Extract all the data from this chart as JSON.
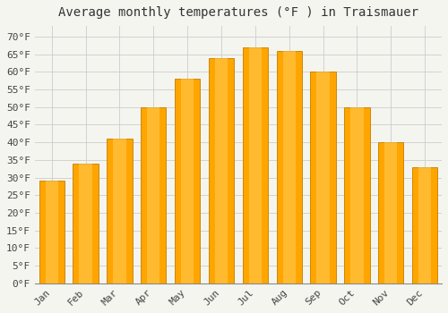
{
  "title": "Average monthly temperatures (°F ) in Traismauer",
  "months": [
    "Jan",
    "Feb",
    "Mar",
    "Apr",
    "May",
    "Jun",
    "Jul",
    "Aug",
    "Sep",
    "Oct",
    "Nov",
    "Dec"
  ],
  "values": [
    29,
    34,
    41,
    50,
    58,
    64,
    67,
    66,
    60,
    50,
    40,
    33
  ],
  "bar_color": "#FFA500",
  "bar_edge_color": "#CC8800",
  "background_color": "#F5F5F0",
  "plot_bg_color": "#F5F5F0",
  "yticks": [
    0,
    5,
    10,
    15,
    20,
    25,
    30,
    35,
    40,
    45,
    50,
    55,
    60,
    65,
    70
  ],
  "ylim": [
    0,
    73
  ],
  "ylabel_suffix": "°F",
  "grid_color": "#CCCCCC",
  "title_fontsize": 10,
  "tick_fontsize": 8,
  "font_family": "monospace",
  "bar_width": 0.75
}
